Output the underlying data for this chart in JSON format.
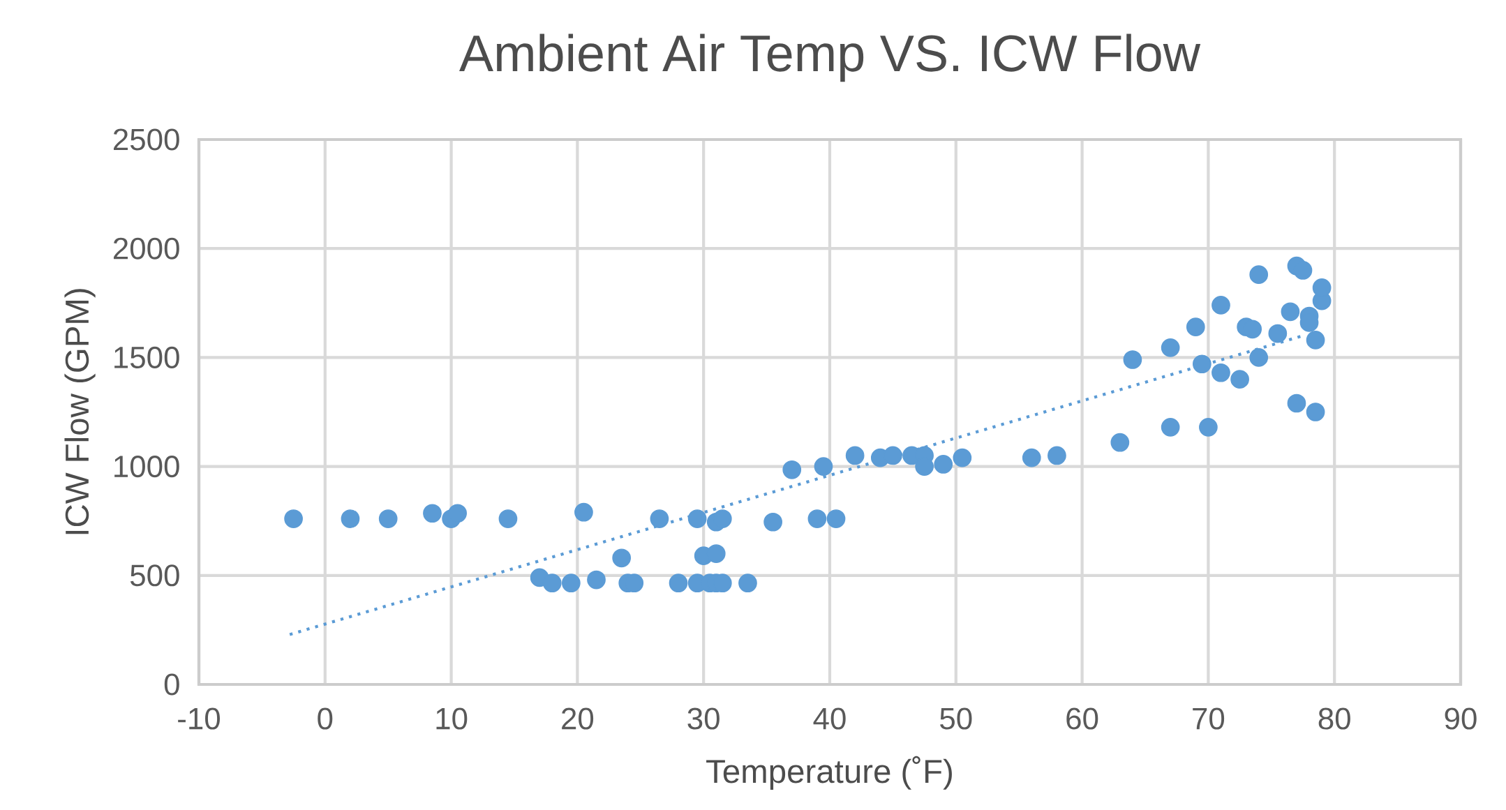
{
  "chart_data": {
    "type": "scatter",
    "title": "Ambient Air Temp VS. ICW Flow",
    "xlabel": "Temperature (˚F)",
    "ylabel": "ICW Flow (GPM)",
    "xlim": [
      -10,
      90
    ],
    "xticks": [
      -10,
      0,
      10,
      20,
      30,
      40,
      50,
      60,
      70,
      80,
      90
    ],
    "ylim": [
      0,
      2500
    ],
    "yticks": [
      0,
      500,
      1000,
      1500,
      2000,
      2500
    ],
    "grid": true,
    "series": [
      {
        "marker": "circle",
        "color": "#5b9bd5",
        "x": [
          -2.5,
          2,
          5,
          8.5,
          10,
          10.5,
          14.5,
          20.5,
          26.5,
          29.5,
          31,
          31.5,
          35.5,
          39,
          40.5,
          17,
          18,
          19.5,
          21.5,
          23.5,
          24,
          24.5,
          28,
          29.5,
          30.5,
          31,
          31.5,
          33.5,
          30,
          31,
          37,
          39.5,
          42,
          44,
          45,
          46.5,
          47.5,
          47.5,
          49,
          50.5,
          56,
          58,
          63,
          64,
          67,
          67,
          69,
          69.5,
          70,
          71,
          71,
          72.5,
          73,
          74,
          73.5,
          74,
          75.5,
          76.5,
          77,
          77,
          77.5,
          78,
          78,
          78.5,
          78.5,
          79,
          79
        ],
        "values": [
          760,
          760,
          760,
          785,
          760,
          785,
          760,
          790,
          760,
          760,
          745,
          760,
          745,
          760,
          760,
          490,
          465,
          465,
          480,
          580,
          465,
          465,
          465,
          465,
          465,
          465,
          465,
          465,
          590,
          600,
          985,
          1000,
          1050,
          1040,
          1050,
          1050,
          1050,
          1000,
          1010,
          1040,
          1040,
          1050,
          1110,
          1490,
          1180,
          1545,
          1640,
          1470,
          1180,
          1740,
          1430,
          1400,
          1640,
          1880,
          1630,
          1500,
          1610,
          1710,
          1920,
          1290,
          1900,
          1690,
          1660,
          1580,
          1250,
          1760,
          1820
        ]
      },
      {
        "type": "line",
        "line_style": "dotted",
        "marker": "none",
        "color": "#5b9bd5",
        "x": [
          -2.8,
          77.4
        ],
        "values": [
          229,
          1598
        ]
      }
    ]
  }
}
